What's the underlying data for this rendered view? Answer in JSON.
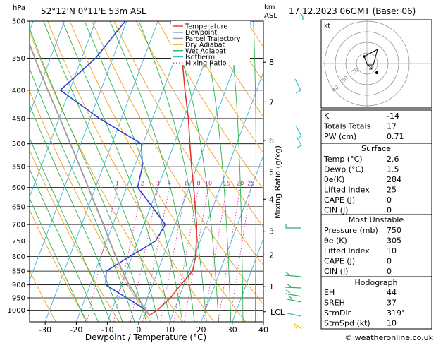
{
  "chart_data": {
    "type": "skew-t",
    "title_location": "52°12'N  0°11'E  53m  ASL",
    "title_time": "17.12.2023  06GMT  (Base: 06)",
    "left_axis_unit": "hPa",
    "right_axis_unit_top": "km",
    "right_axis_unit_bottom": "ASL",
    "xlabel": "Dewpoint / Temperature (°C)",
    "mixing_ratio_label": "Mixing Ratio (g/kg)",
    "x_ticks": [
      -30,
      -20,
      -10,
      0,
      10,
      20,
      30,
      40
    ],
    "x_range": [
      -35,
      40
    ],
    "pressure_levels": [
      300,
      350,
      400,
      450,
      500,
      550,
      600,
      650,
      700,
      750,
      800,
      850,
      900,
      950,
      1000
    ],
    "p_range": [
      300,
      1050
    ],
    "km_ticks": [
      {
        "label": "8",
        "p": 356
      },
      {
        "label": "7",
        "p": 420
      },
      {
        "label": "6",
        "p": 493
      },
      {
        "label": "5",
        "p": 562
      },
      {
        "label": "4",
        "p": 630
      },
      {
        "label": "3",
        "p": 720
      },
      {
        "label": "2",
        "p": 795
      },
      {
        "label": "1",
        "p": 907
      },
      {
        "label": "LCL",
        "p": 1007
      }
    ],
    "mixing_ratio_values": [
      1,
      2,
      3,
      4,
      6,
      8,
      10,
      15,
      20,
      25
    ],
    "mixing_ratio_label_text": [
      "1",
      "2",
      "3",
      "4",
      "6",
      "8",
      "10",
      "15",
      "20",
      "25"
    ],
    "legend": [
      "Temperature",
      "Dewpoint",
      "Parcel Trajectory",
      "Dry Adiabat",
      "Wet Adiabat",
      "Isotherm",
      "Mixing Ratio"
    ],
    "series": [
      {
        "name": "Temperature",
        "color": "#e8332b",
        "points": [
          [
            1023,
            2.6
          ],
          [
            1000,
            4.6
          ],
          [
            950,
            7.3
          ],
          [
            900,
            9.0
          ],
          [
            850,
            11.2
          ],
          [
            800,
            10.4
          ],
          [
            750,
            8.8
          ],
          [
            700,
            6.9
          ],
          [
            650,
            4.3
          ],
          [
            600,
            1.5
          ],
          [
            550,
            -1.7
          ],
          [
            500,
            -5.0
          ],
          [
            450,
            -8.5
          ],
          [
            400,
            -13.0
          ],
          [
            350,
            -17.8
          ],
          [
            300,
            -23.2
          ]
        ]
      },
      {
        "name": "Dewpoint",
        "color": "#2a45d6",
        "points": [
          [
            1023,
            1.5
          ],
          [
            1000,
            1.0
          ],
          [
            950,
            -6.8
          ],
          [
            900,
            -15.0
          ],
          [
            850,
            -16.5
          ],
          [
            800,
            -10.8
          ],
          [
            750,
            -4.3
          ],
          [
            700,
            -3.2
          ],
          [
            650,
            -9.5
          ],
          [
            600,
            -16.5
          ],
          [
            550,
            -17.5
          ],
          [
            500,
            -20.5
          ],
          [
            450,
            -37.0
          ],
          [
            400,
            -53.0
          ],
          [
            350,
            -45.5
          ],
          [
            300,
            -40.5
          ]
        ]
      },
      {
        "name": "Parcel Trajectory",
        "color": "#a0a0a0",
        "points": [
          [
            1023,
            2.6
          ],
          [
            1007,
            1.5
          ],
          [
            950,
            -3.3
          ],
          [
            900,
            -7.5
          ],
          [
            850,
            -11.3
          ],
          [
            800,
            -15.2
          ],
          [
            750,
            -19.0
          ],
          [
            700,
            -23.0
          ],
          [
            650,
            -27.5
          ],
          [
            600,
            -32.3
          ],
          [
            550,
            -37.5
          ],
          [
            500,
            -43.3
          ],
          [
            450,
            -49.7
          ],
          [
            400,
            -57.0
          ],
          [
            350,
            -65.0
          ],
          [
            300,
            -74.0
          ]
        ]
      }
    ]
  },
  "hodograph": {
    "unit_label": "kt",
    "ring_labels": [
      "10",
      "20",
      "30",
      "40"
    ]
  },
  "indices": {
    "rows": [
      {
        "label": "K",
        "value": "-14"
      },
      {
        "label": "Totals Totals",
        "value": "17"
      },
      {
        "label": "PW (cm)",
        "value": "0.71"
      }
    ]
  },
  "surface": {
    "title": "Surface",
    "rows": [
      {
        "label": "Temp (°C)",
        "value": "2.6"
      },
      {
        "label": "Dewp (°C)",
        "value": "1.5"
      },
      {
        "label": "θe(K)",
        "value": "284"
      },
      {
        "label": "Lifted Index",
        "value": "25"
      },
      {
        "label": "CAPE (J)",
        "value": "0"
      },
      {
        "label": "CIN (J)",
        "value": "0"
      }
    ]
  },
  "most_unstable": {
    "title": "Most Unstable",
    "rows": [
      {
        "label": "Pressure (mb)",
        "value": "750"
      },
      {
        "label": "θe (K)",
        "value": "305"
      },
      {
        "label": "Lifted Index",
        "value": "10"
      },
      {
        "label": "CAPE (J)",
        "value": "0"
      },
      {
        "label": "CIN (J)",
        "value": "0"
      }
    ]
  },
  "hodograph_table": {
    "title": "Hodograph",
    "rows": [
      {
        "label": "EH",
        "value": "44"
      },
      {
        "label": "SREH",
        "value": "37"
      },
      {
        "label": "StmDir",
        "value": "319°"
      },
      {
        "label": "StmSpd (kt)",
        "value": "10"
      }
    ]
  },
  "footer": {
    "copyright": "© weatheronline.co.uk"
  }
}
